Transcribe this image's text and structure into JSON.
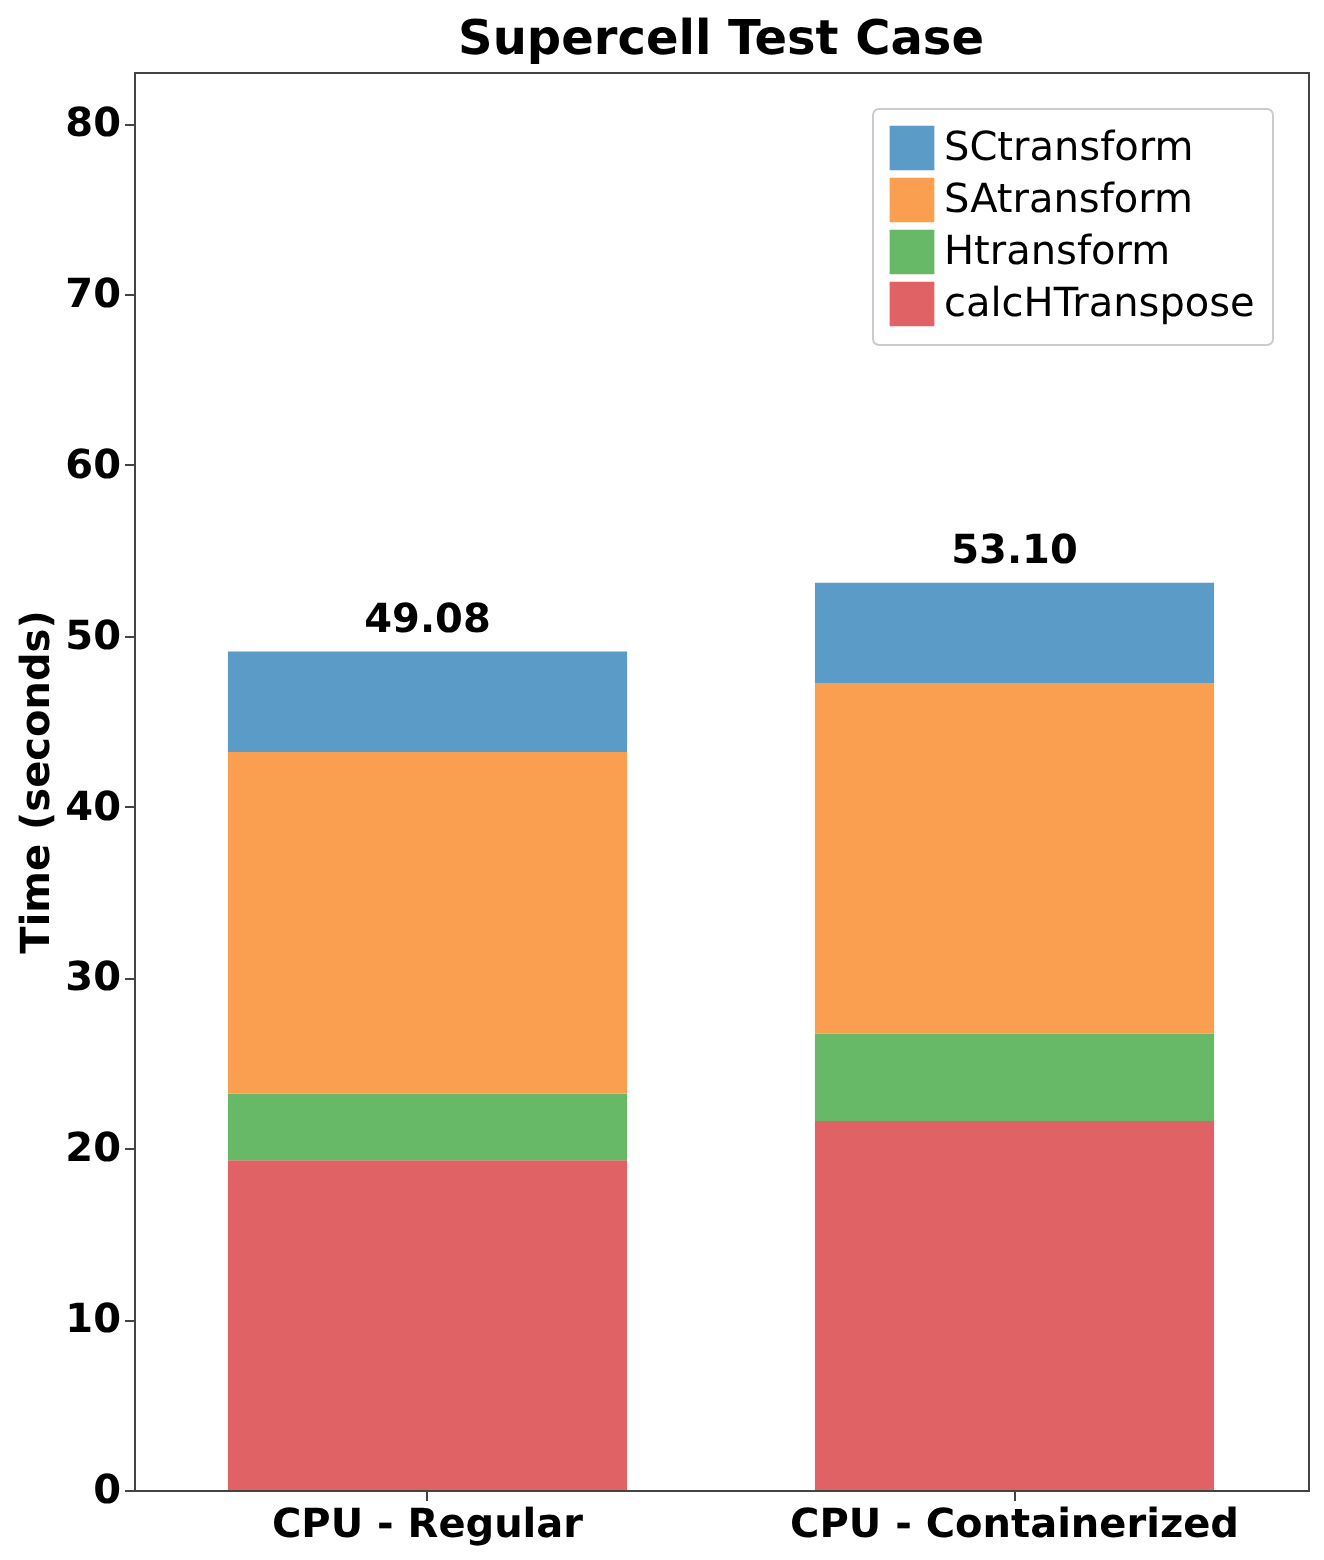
{
  "chart_data": {
    "type": "bar",
    "title": "Supercell Test Case",
    "ylabel": "Time (seconds)",
    "categories": [
      "CPU - Regular",
      "CPU - Containerized"
    ],
    "stacked": true,
    "series": [
      {
        "name": "calcHTranspose",
        "color": "#e06264",
        "values": [
          19.3,
          21.6
        ]
      },
      {
        "name": "Htransform",
        "color": "#67b867",
        "values": [
          3.9,
          5.1
        ]
      },
      {
        "name": "SAtransform",
        "color": "#fa9e4f",
        "values": [
          20.0,
          20.5
        ]
      },
      {
        "name": "SCtransform",
        "color": "#5a9bc8",
        "values": [
          5.88,
          5.9
        ]
      }
    ],
    "totals": [
      "49.08",
      "53.10"
    ],
    "ylim": [
      0,
      83
    ],
    "yticks": [
      0,
      10,
      20,
      30,
      40,
      50,
      60,
      70,
      80
    ],
    "grid": false,
    "legend": "top right"
  }
}
